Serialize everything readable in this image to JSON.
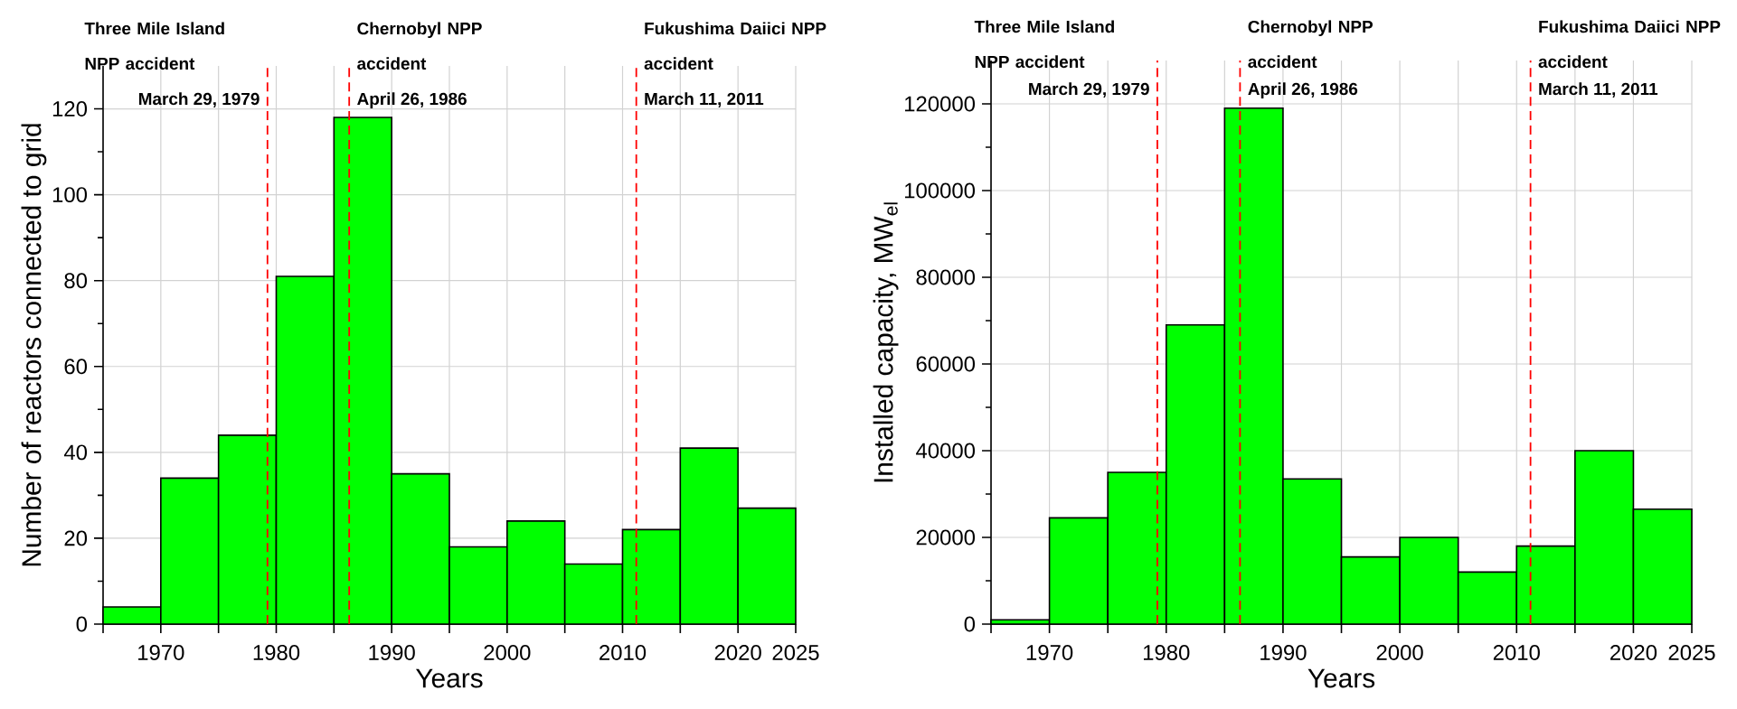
{
  "chart_data": [
    {
      "type": "histogram",
      "xlabel": "Years",
      "ylabel": "Number of reactors connected to grid",
      "bins": [
        1965,
        1970,
        1975,
        1980,
        1985,
        1990,
        1995,
        2000,
        2005,
        2010,
        2015,
        2020,
        2025
      ],
      "values": [
        4,
        34,
        44,
        81,
        118,
        35,
        18,
        24,
        14,
        22,
        41,
        27
      ],
      "color": "#00ff00",
      "xlim": [
        1965,
        2025
      ],
      "ylim": [
        0,
        130
      ],
      "xticks": [
        {
          "value": 1965,
          "label": null
        },
        1970,
        {
          "value": 1975,
          "label": null
        },
        1980,
        {
          "value": 1985,
          "label": null
        },
        1990,
        {
          "value": 1995,
          "label": null
        },
        2000,
        {
          "value": 2005,
          "label": null
        },
        2010,
        {
          "value": 2015,
          "label": null
        },
        2020,
        2025
      ],
      "yticks": [
        0,
        20,
        40,
        60,
        80,
        100,
        120
      ],
      "grid": true,
      "ref_lines": [
        {
          "axis": "x",
          "value": 1979.24,
          "label": "Three Mile Island NPP accident",
          "color": "#ff0000",
          "line_style": "dashed"
        },
        {
          "axis": "x",
          "value": 1986.32,
          "label": "Chernobyl NPP accident",
          "color": "#ff0000",
          "line_style": "dashed"
        },
        {
          "axis": "x",
          "value": 2011.19,
          "label": "Fukushima Daiici NPP accident",
          "color": "#ff0000",
          "line_style": "dashed"
        }
      ],
      "annotations": [
        {
          "text": "March 29, 1979",
          "x": 1979.24
        },
        {
          "text": "April 26, 1986",
          "x": 1986.32
        },
        {
          "text": "March 11, 2011",
          "x": 2011.19
        }
      ]
    },
    {
      "type": "histogram",
      "xlabel": "Years",
      "ylabel": "Installed capacity, MW$_{el}$",
      "bins": [
        1965,
        1970,
        1975,
        1980,
        1985,
        1990,
        1995,
        2000,
        2005,
        2010,
        2015,
        2020,
        2025
      ],
      "values": [
        1000,
        24500,
        35000,
        69000,
        119000,
        33500,
        15500,
        20000,
        12000,
        18000,
        40000,
        26500
      ],
      "color": "#00ff00",
      "xlim": [
        1965,
        2025
      ],
      "ylim": [
        0,
        130000
      ],
      "xticks": [
        {
          "value": 1965,
          "label": null
        },
        1970,
        {
          "value": 1975,
          "label": null
        },
        1980,
        {
          "value": 1985,
          "label": null
        },
        1990,
        {
          "value": 1995,
          "label": null
        },
        2000,
        {
          "value": 2005,
          "label": null
        },
        2010,
        {
          "value": 2015,
          "label": null
        },
        2020,
        2025
      ],
      "yticks": [
        0,
        20000,
        40000,
        60000,
        80000,
        100000,
        120000
      ],
      "grid": true,
      "ref_lines": [
        {
          "axis": "x",
          "value": 1979.24,
          "label": "Three Mile Island NPP accident",
          "color": "#ff0000",
          "line_style": "dashed"
        },
        {
          "axis": "x",
          "value": 1986.32,
          "label": "Chernobyl NPP accident",
          "color": "#ff0000",
          "line_style": "dashed"
        },
        {
          "axis": "x",
          "value": 2011.19,
          "label": "Fukushima Daiici NPP accident",
          "color": "#ff0000",
          "line_style": "dashed"
        }
      ],
      "annotations": [
        {
          "text": "March 29, 1979",
          "x": 1979.24
        },
        {
          "text": "April 26, 1986",
          "x": 1986.32
        },
        {
          "text": "March 11, 2011",
          "x": 2011.19
        }
      ]
    }
  ]
}
